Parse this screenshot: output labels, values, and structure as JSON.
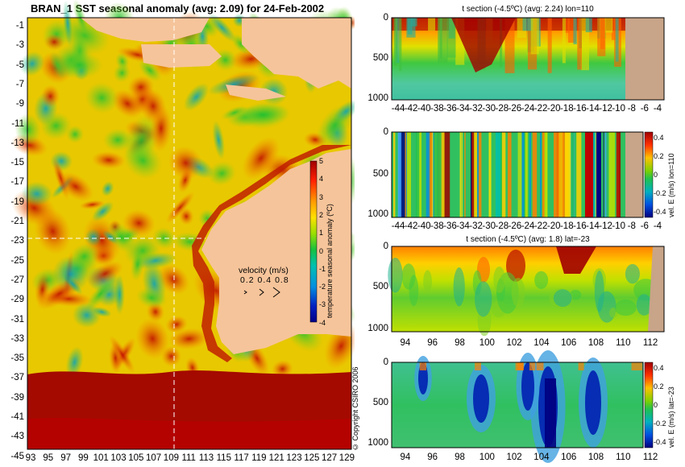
{
  "map": {
    "title": "BRAN_1 SST seasonal anomaly (avg: 2.09) for 24-Feb-2002",
    "y_ticks": [
      "-1",
      "-3",
      "-5",
      "-7",
      "-9",
      "-11",
      "-13",
      "-15",
      "-17",
      "-19",
      "-21",
      "-23",
      "-25",
      "-27",
      "-29",
      "-31",
      "-33",
      "-35",
      "-37",
      "-39",
      "-41",
      "-43",
      "-45"
    ],
    "x_ticks": [
      "93",
      "95",
      "97",
      "99",
      "101",
      "103",
      "105",
      "107",
      "109",
      "111",
      "113",
      "115",
      "117",
      "119",
      "121",
      "123",
      "125",
      "127",
      "129"
    ],
    "colorbar_label": "temperature seasonal anomaly (ºC)",
    "colorbar_ticks": [
      "5",
      "4",
      "3",
      "2",
      "1",
      "0",
      "-1",
      "-2",
      "-3",
      "-4"
    ],
    "velocity_label": "velocity (m/s)",
    "velocity_scale": [
      "0.2",
      "0.4",
      "0.8"
    ],
    "copyright": "© Copyright CSIRO 2006"
  },
  "panels": [
    {
      "title": "t section (-4.5ºC) (avg: 2.24) lon=110",
      "x_ticks": [
        "-44",
        "-42",
        "-40",
        "-38",
        "-36",
        "-34",
        "-32",
        "-30",
        "-28",
        "-26",
        "-24",
        "-22",
        "-20",
        "-18",
        "-16",
        "-14",
        "-12",
        "-10",
        "-8",
        "-6",
        "-4"
      ],
      "y_ticks": [
        "0",
        "500",
        "1000"
      ]
    },
    {
      "title": "",
      "x_ticks": [
        "-44",
        "-42",
        "-40",
        "-38",
        "-36",
        "-34",
        "-32",
        "-30",
        "-28",
        "-26",
        "-24",
        "-22",
        "-20",
        "-18",
        "-16",
        "-14",
        "-12",
        "-10",
        "-8",
        "-6",
        "-4"
      ],
      "y_ticks": [
        "0",
        "500",
        "1000"
      ],
      "colorbar_label": "vel. E (m/s) lon=110",
      "colorbar_ticks": [
        "0.4",
        "0.2",
        "0",
        "-0.2",
        "-0.4"
      ]
    },
    {
      "title": "t section (-4.5ºC) (avg: 1.8) lat=-23",
      "x_ticks": [
        "94",
        "96",
        "98",
        "100",
        "102",
        "104",
        "106",
        "108",
        "110",
        "112"
      ],
      "y_ticks": [
        "0",
        "500",
        "1000"
      ]
    },
    {
      "title": "",
      "x_ticks": [
        "94",
        "96",
        "98",
        "100",
        "102",
        "104",
        "106",
        "108",
        "110",
        "112"
      ],
      "y_ticks": [
        "0",
        "500",
        "1000"
      ],
      "colorbar_label": "vel. E (m/s) lat=-23",
      "colorbar_ticks": [
        "0.4",
        "0.2",
        "0",
        "-0.2",
        "-0.4"
      ]
    }
  ],
  "colors": {
    "land": "#f6c49a",
    "land_section": "#c8a488",
    "warm": "#a00000",
    "cold": "#000088"
  }
}
